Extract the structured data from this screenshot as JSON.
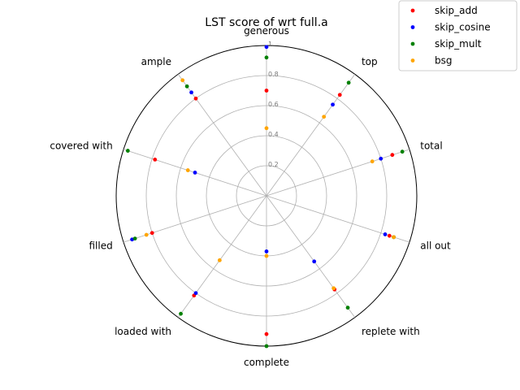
{
  "chart_data": {
    "type": "radar",
    "title": "LST score of wrt full.a",
    "categories": [
      "generous",
      "top",
      "total",
      "all out",
      "replete with",
      "complete",
      "loaded with",
      "filled",
      "covered with",
      "ample"
    ],
    "rlim": [
      0,
      1
    ],
    "rticks": [
      "0.2",
      "0.4",
      "0.6",
      "0.8",
      "1"
    ],
    "rtick_values": [
      0.2,
      0.4,
      0.6,
      0.8,
      1.0
    ],
    "grid": true,
    "legend_position": "top-right",
    "series": [
      {
        "name": "skip_add",
        "color": "#ff0000",
        "values": [
          0.7,
          0.83,
          0.88,
          0.86,
          0.77,
          0.92,
          0.82,
          0.8,
          0.78,
          0.8
        ]
      },
      {
        "name": "skip_cosine",
        "color": "#0000ff",
        "values": [
          0.99,
          0.75,
          0.8,
          0.83,
          0.54,
          0.37,
          0.8,
          0.94,
          0.5,
          0.85
        ]
      },
      {
        "name": "skip_mult",
        "color": "#008000",
        "values": [
          0.92,
          0.93,
          0.95,
          0.89,
          0.92,
          1.0,
          0.97,
          0.92,
          0.97,
          0.9
        ]
      },
      {
        "name": "bsg",
        "color": "#ffa500",
        "values": [
          0.45,
          0.65,
          0.74,
          0.89,
          0.76,
          0.4,
          0.53,
          0.84,
          0.55,
          0.95
        ]
      }
    ]
  }
}
